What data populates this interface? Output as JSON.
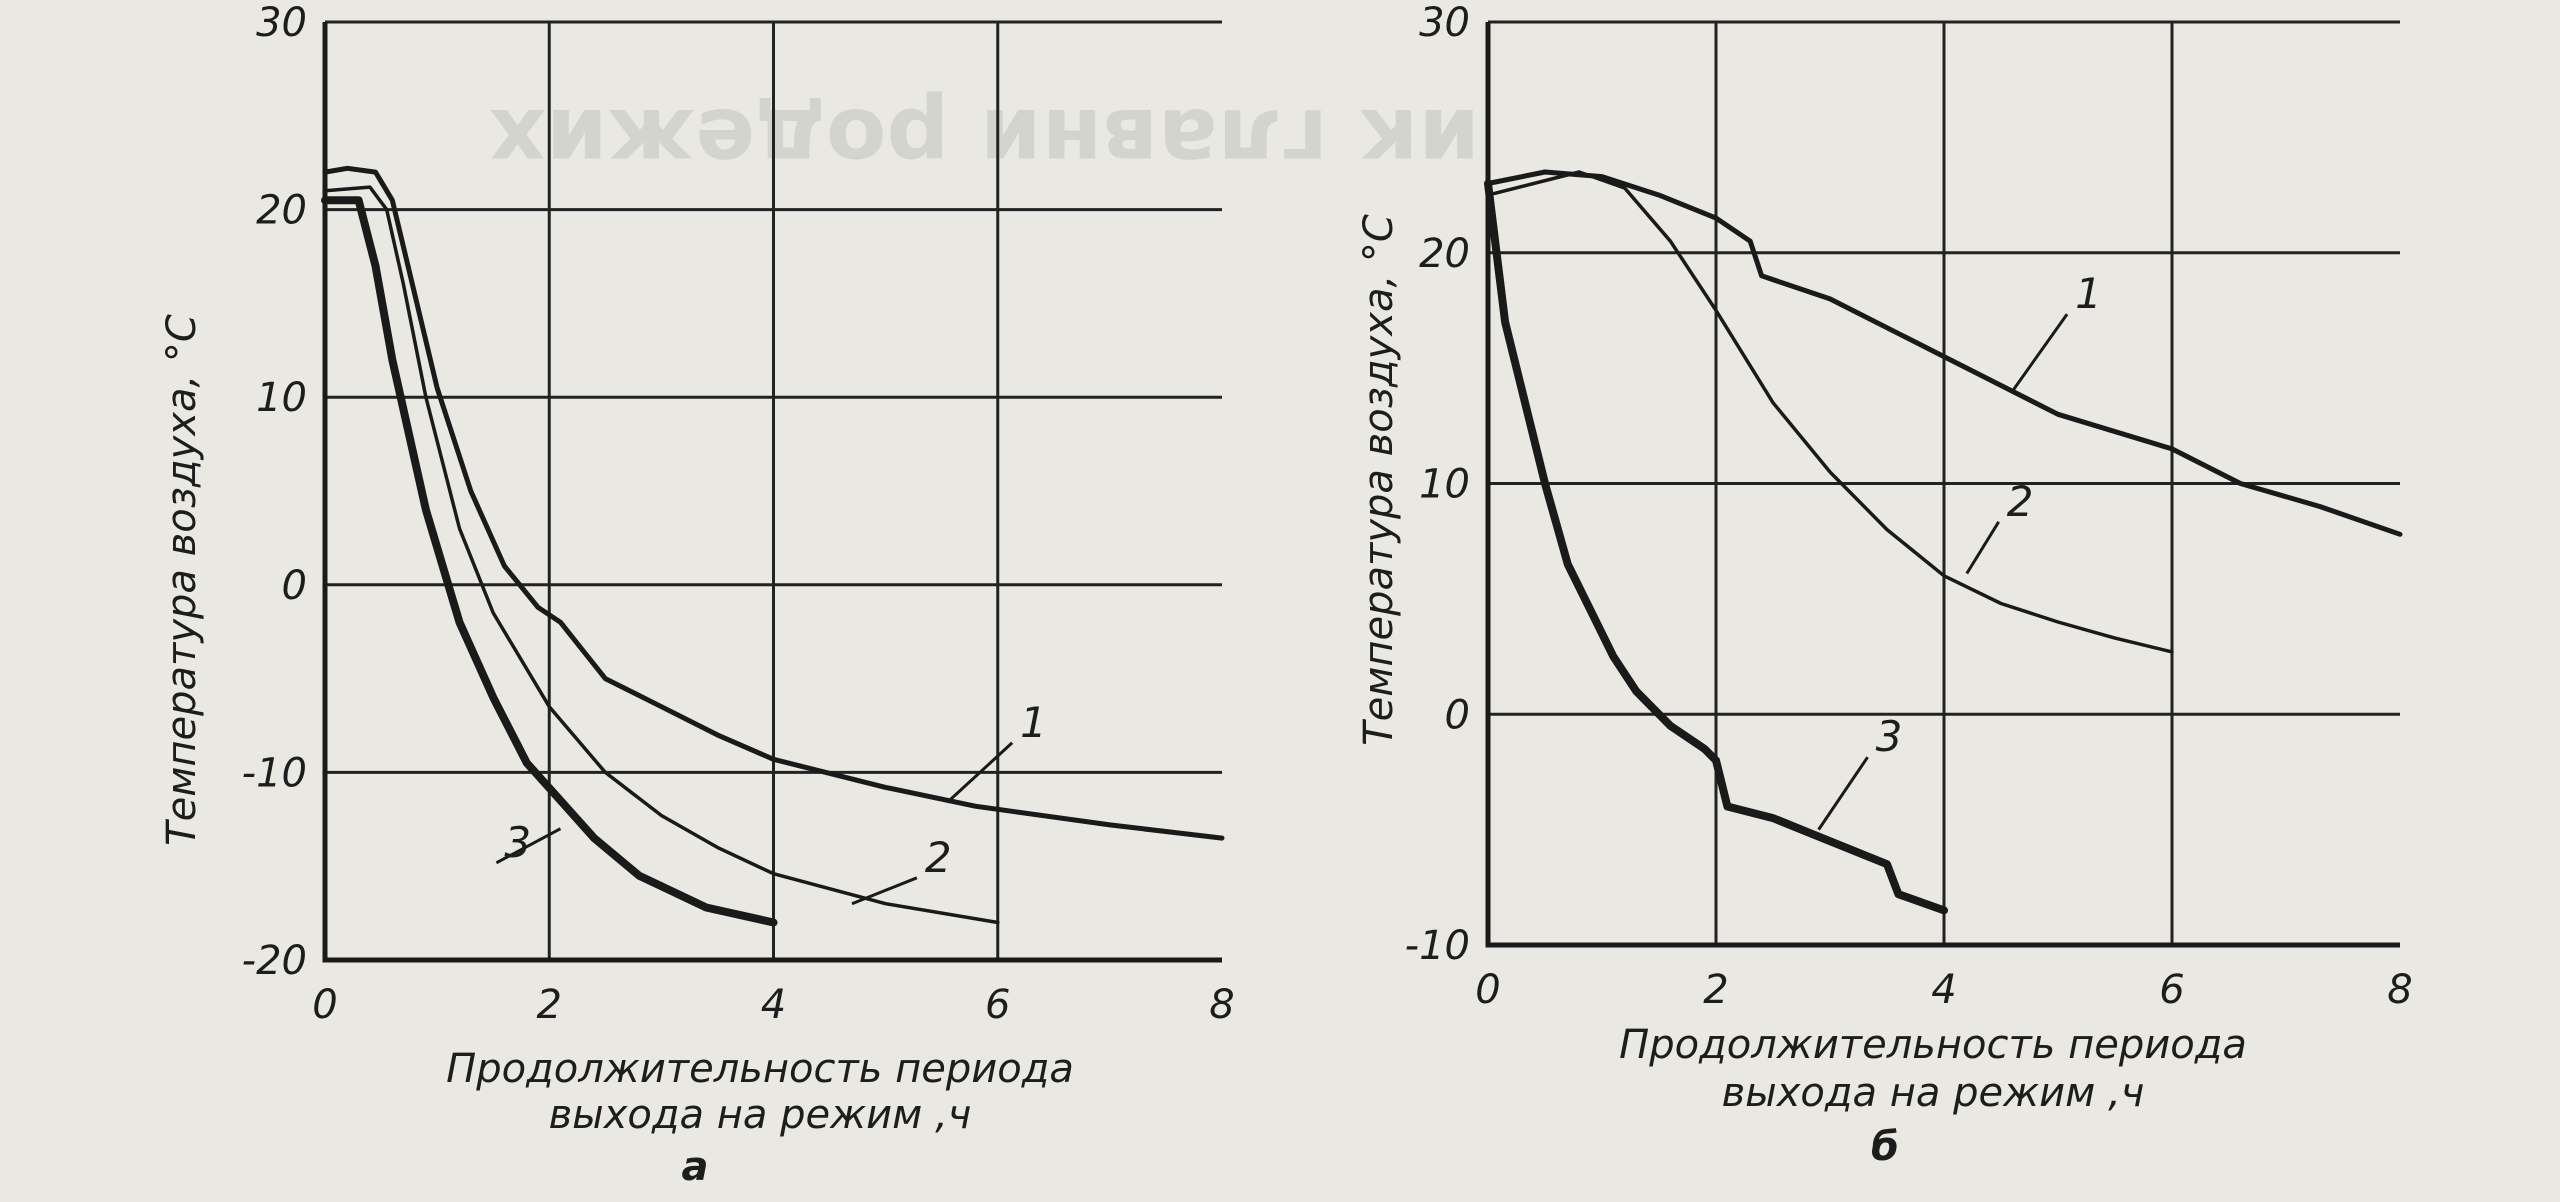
{
  "chart_data": [
    {
      "type": "line",
      "panel_label": "а",
      "xlabel_line1": "Продолжительность периода",
      "xlabel_line2": "выхода на режим ,ч",
      "ylabel": "Температура воздуха, °С",
      "xlim": [
        0,
        8
      ],
      "ylim": [
        -20,
        30
      ],
      "x_ticks": [
        0,
        2,
        4,
        6,
        8
      ],
      "y_ticks": [
        -20,
        -10,
        0,
        10,
        20,
        30
      ],
      "grid": true,
      "series": [
        {
          "name": "1",
          "points": [
            [
              0,
              22
            ],
            [
              0.2,
              22.2
            ],
            [
              0.45,
              22
            ],
            [
              0.6,
              20.5
            ],
            [
              0.8,
              15.5
            ],
            [
              1.0,
              10.5
            ],
            [
              1.3,
              5
            ],
            [
              1.6,
              1
            ],
            [
              1.9,
              -1.2
            ],
            [
              2.1,
              -2
            ],
            [
              2.3,
              -3.5
            ],
            [
              2.5,
              -5
            ],
            [
              3,
              -6.5
            ],
            [
              3.5,
              -8
            ],
            [
              4,
              -9.3
            ],
            [
              5,
              -10.8
            ],
            [
              5.8,
              -11.8
            ],
            [
              7,
              -12.8
            ],
            [
              8,
              -13.5
            ]
          ]
        },
        {
          "name": "2",
          "points": [
            [
              0,
              21
            ],
            [
              0.4,
              21.2
            ],
            [
              0.55,
              20
            ],
            [
              0.7,
              16
            ],
            [
              0.9,
              10
            ],
            [
              1.2,
              3
            ],
            [
              1.5,
              -1.5
            ],
            [
              2,
              -6.5
            ],
            [
              2.5,
              -10
            ],
            [
              3,
              -12.3
            ],
            [
              3.5,
              -14
            ],
            [
              4,
              -15.4
            ],
            [
              5,
              -17
            ],
            [
              6,
              -18
            ]
          ]
        },
        {
          "name": "3",
          "points": [
            [
              0,
              20.5
            ],
            [
              0.3,
              20.5
            ],
            [
              0.45,
              17
            ],
            [
              0.6,
              12
            ],
            [
              0.9,
              4
            ],
            [
              1.2,
              -2
            ],
            [
              1.5,
              -6
            ],
            [
              1.8,
              -9.5
            ],
            [
              2.1,
              -11.5
            ],
            [
              2.4,
              -13.5
            ],
            [
              2.8,
              -15.5
            ],
            [
              3.4,
              -17.2
            ],
            [
              4,
              -18
            ]
          ]
        }
      ],
      "curve_labels": [
        {
          "text": "1",
          "x": 6.2,
          "y": -8.1,
          "ax": 5.55,
          "ay": -11.6
        },
        {
          "text": "2",
          "x": 5.35,
          "y": -15.3,
          "ax": 4.7,
          "ay": -17
        },
        {
          "text": "3",
          "x": 1.6,
          "y": -14.5,
          "ax": 2.1,
          "ay": -13
        }
      ]
    },
    {
      "type": "line",
      "panel_label": "б",
      "xlabel_line1": "Продолжительность периода",
      "xlabel_line2": "выхода на режим ,ч",
      "ylabel": "Температура воздуха, °С",
      "xlim": [
        0,
        8
      ],
      "ylim": [
        -10,
        30
      ],
      "x_ticks": [
        0,
        2,
        4,
        6,
        8
      ],
      "y_ticks": [
        -10,
        0,
        10,
        20,
        30
      ],
      "grid": true,
      "series": [
        {
          "name": "1",
          "points": [
            [
              0,
              23
            ],
            [
              0.5,
              23.5
            ],
            [
              1.0,
              23.3
            ],
            [
              1.5,
              22.5
            ],
            [
              2.0,
              21.5
            ],
            [
              2.3,
              20.5
            ],
            [
              2.4,
              19
            ],
            [
              3,
              18
            ],
            [
              4,
              15.5
            ],
            [
              5,
              13
            ],
            [
              6,
              11.5
            ],
            [
              6.6,
              10
            ],
            [
              7.3,
              9
            ],
            [
              8,
              7.8
            ]
          ]
        },
        {
          "name": "2",
          "points": [
            [
              0,
              22.5
            ],
            [
              0.8,
              23.5
            ],
            [
              1.2,
              22.8
            ],
            [
              1.6,
              20.5
            ],
            [
              2,
              17.5
            ],
            [
              2.5,
              13.5
            ],
            [
              3,
              10.5
            ],
            [
              3.5,
              8
            ],
            [
              4,
              6
            ],
            [
              4.5,
              4.8
            ],
            [
              5,
              4
            ],
            [
              5.5,
              3.3
            ],
            [
              6,
              2.7
            ]
          ]
        },
        {
          "name": "3",
          "points": [
            [
              0,
              23
            ],
            [
              0.15,
              17
            ],
            [
              0.3,
              14
            ],
            [
              0.5,
              10
            ],
            [
              0.7,
              6.5
            ],
            [
              0.9,
              4.5
            ],
            [
              1.1,
              2.5
            ],
            [
              1.3,
              1
            ],
            [
              1.6,
              -0.5
            ],
            [
              1.9,
              -1.5
            ],
            [
              2.0,
              -2
            ],
            [
              2.1,
              -4
            ],
            [
              2.5,
              -4.5
            ],
            [
              3,
              -5.5
            ],
            [
              3.5,
              -6.5
            ],
            [
              3.6,
              -7.8
            ],
            [
              4,
              -8.5
            ]
          ]
        }
      ],
      "curve_labels": [
        {
          "text": "1",
          "x": 5.15,
          "y": 17.6,
          "ax": 4.6,
          "ay": 14
        },
        {
          "text": "2",
          "x": 4.55,
          "y": 8.6,
          "ax": 4.2,
          "ay": 6.1
        },
        {
          "text": "3",
          "x": 3.4,
          "y": -1.6,
          "ax": 2.9,
          "ay": -5
        }
      ]
    }
  ]
}
